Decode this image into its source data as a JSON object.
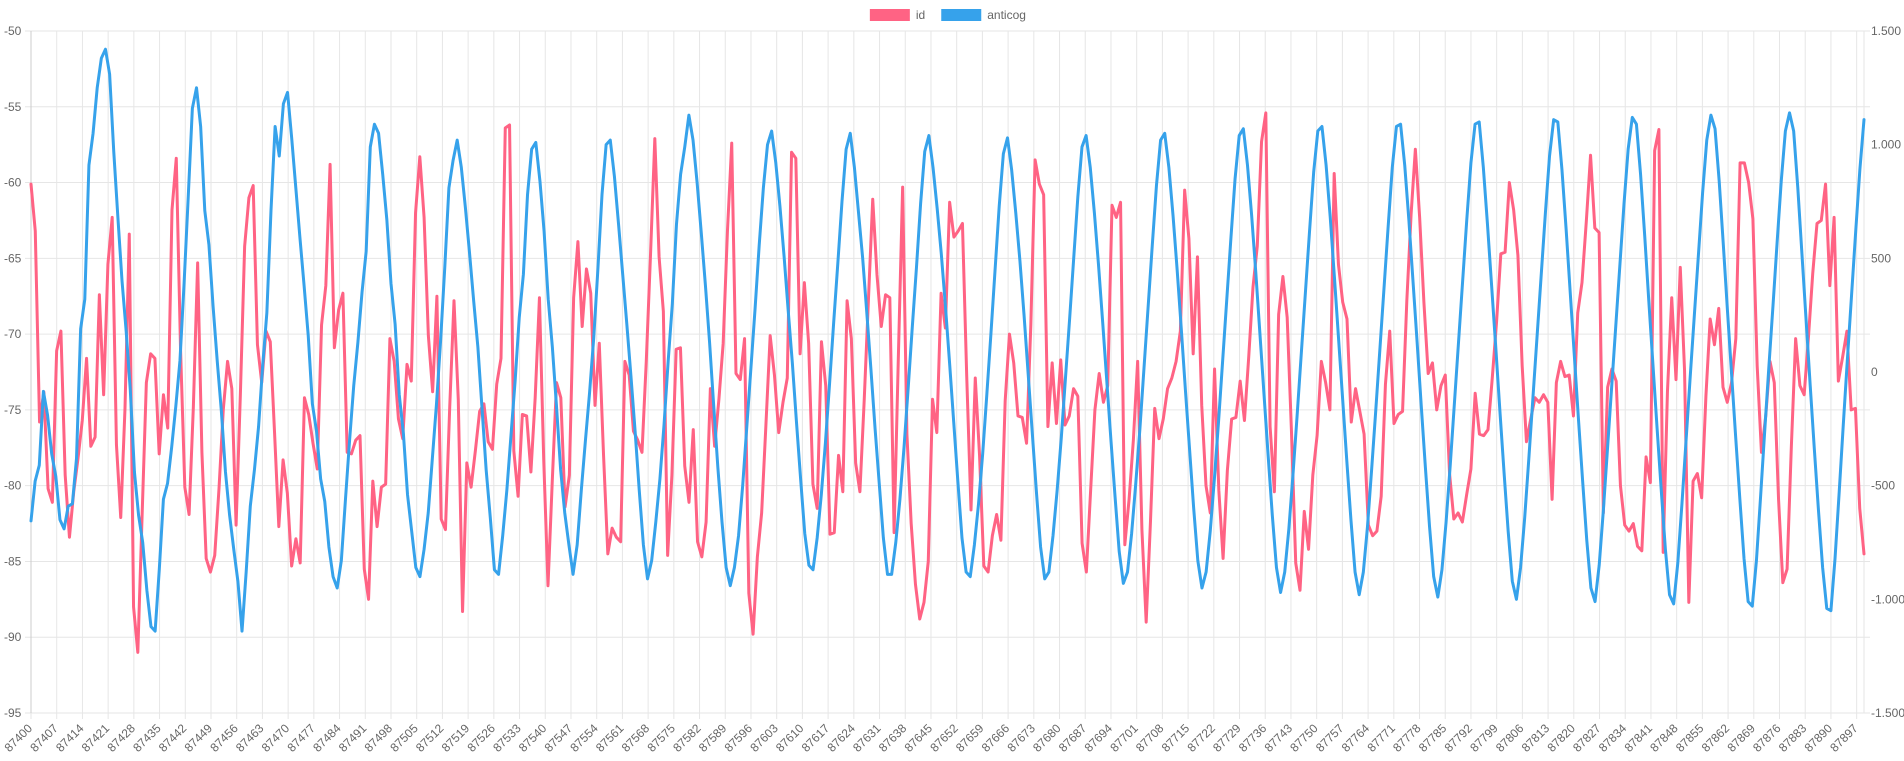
{
  "chart_data": {
    "type": "line",
    "x": {
      "start": 87400,
      "end": 87899,
      "label_start": 87400,
      "label_step": 7,
      "label_end": 87897
    },
    "legend": {
      "placement": "top-center",
      "items": [
        {
          "name": "id",
          "color": "#ff6384"
        },
        {
          "name": "anticog",
          "color": "#36a2eb"
        }
      ]
    },
    "y_left": {
      "min": -95,
      "max": -50,
      "ticks": [
        -50,
        -55,
        -60,
        -65,
        -70,
        -75,
        -80,
        -85,
        -90,
        -95
      ],
      "tick_labels": [
        "-50",
        "-55",
        "-60",
        "-65",
        "-70",
        "-75",
        "-80",
        "-85",
        "-90",
        "-95"
      ]
    },
    "y_right": {
      "min": -1500,
      "max": 1500,
      "ticks": [
        1500,
        1000,
        500,
        0,
        -500,
        -1000,
        -1500
      ],
      "tick_labels": [
        "1.500",
        "1.000",
        "500",
        "0",
        "-500",
        "-1.000",
        "-1.500"
      ]
    },
    "grid": true,
    "series": [
      {
        "name": "id",
        "axis": "left",
        "color": "#ff6384",
        "values": [
          -60.1,
          -63.2,
          -75.8,
          -73.8,
          -80.2,
          -81.1,
          -71.1,
          -69.8,
          -79.3,
          -83.4,
          -80.4,
          -78.2,
          -75.7,
          -71.6,
          -77.4,
          -76.8,
          -67.4,
          -74.0,
          -65.4,
          -62.3,
          -77.3,
          -82.1,
          -74.9,
          -63.4,
          -88.0,
          -91.0,
          -82.0,
          -73.2,
          -71.3,
          -71.6,
          -77.9,
          -74.0,
          -76.2,
          -61.8,
          -58.4,
          -71.0,
          -80.1,
          -81.9,
          -74.8,
          -65.3,
          -77.8,
          -84.8,
          -85.7,
          -84.6,
          -80.2,
          -75.0,
          -71.8,
          -73.6,
          -82.6,
          -74.0,
          -64.2,
          -61.0,
          -60.2,
          -70.7,
          -73.2,
          -69.8,
          -70.5,
          -76.5,
          -82.7,
          -78.3,
          -80.5,
          -85.3,
          -83.5,
          -85.1,
          -74.2,
          -75.3,
          -77.2,
          -78.9,
          -69.4,
          -66.8,
          -58.8,
          -70.9,
          -68.4,
          -67.3,
          -77.8,
          -77.9,
          -77.0,
          -76.7,
          -85.5,
          -87.5,
          -79.7,
          -82.7,
          -80.1,
          -79.9,
          -70.3,
          -71.8,
          -75.6,
          -76.9,
          -72.0,
          -73.1,
          -62.0,
          -58.3,
          -62.3,
          -70.1,
          -73.8,
          -67.5,
          -82.2,
          -82.9,
          -74.8,
          -67.8,
          -74.3,
          -88.3,
          -78.5,
          -80.1,
          -77.7,
          -75.1,
          -74.6,
          -77.1,
          -77.6,
          -73.3,
          -71.6,
          -56.4,
          -56.2,
          -77.7,
          -80.7,
          -75.3,
          -75.4,
          -79.1,
          -74.2,
          -67.6,
          -78.3,
          -86.6,
          -79.7,
          -73.2,
          -74.2,
          -81.4,
          -79.3,
          -67.6,
          -63.9,
          -69.5,
          -65.7,
          -67.3,
          -74.7,
          -70.6,
          -78.0,
          -84.5,
          -82.8,
          -83.4,
          -83.7,
          -71.8,
          -72.7,
          -76.4,
          -77.0,
          -77.8,
          -71.8,
          -64.7,
          -57.1,
          -64.9,
          -68.5,
          -84.6,
          -79.3,
          -71.0,
          -70.9,
          -78.7,
          -81.1,
          -76.3,
          -83.7,
          -84.7,
          -82.4,
          -73.6,
          -77.4,
          -74.3,
          -70.6,
          -63.2,
          -57.4,
          -72.6,
          -73.0,
          -70.3,
          -87.1,
          -89.8,
          -84.7,
          -81.8,
          -76.0,
          -70.1,
          -72.7,
          -76.5,
          -74.5,
          -72.9,
          -58.0,
          -58.4,
          -71.3,
          -66.6,
          -70.6,
          -79.9,
          -81.5,
          -70.5,
          -73.4,
          -83.2,
          -83.1,
          -78.0,
          -80.4,
          -67.8,
          -70.3,
          -78.5,
          -80.4,
          -74.4,
          -67.7,
          -61.1,
          -66.1,
          -69.5,
          -67.4,
          -67.6,
          -83.1,
          -71.5,
          -60.3,
          -76.6,
          -82.5,
          -86.5,
          -88.8,
          -87.7,
          -85.0,
          -74.3,
          -76.5,
          -67.3,
          -69.6,
          -61.3,
          -63.6,
          -63.2,
          -62.7,
          -72.8,
          -81.6,
          -72.9,
          -78.0,
          -85.3,
          -85.7,
          -83.3,
          -81.9,
          -83.6,
          -74.4,
          -70.0,
          -71.9,
          -75.4,
          -75.5,
          -77.2,
          -69.4,
          -58.5,
          -60.1,
          -60.8,
          -76.1,
          -71.9,
          -75.9,
          -71.7,
          -76.0,
          -75.4,
          -73.6,
          -74.1,
          -83.8,
          -85.7,
          -80.3,
          -75.0,
          -72.6,
          -74.5,
          -73.4,
          -61.5,
          -62.3,
          -61.3,
          -83.9,
          -80.9,
          -77.0,
          -71.8,
          -82.9,
          -89.0,
          -82.4,
          -74.9,
          -76.9,
          -75.6,
          -73.6,
          -72.9,
          -71.8,
          -69.8,
          -60.5,
          -63.7,
          -71.3,
          -64.9,
          -74.7,
          -80.0,
          -81.8,
          -72.3,
          -80.3,
          -84.8,
          -79.0,
          -75.6,
          -75.5,
          -73.1,
          -75.7,
          -71.5,
          -66.9,
          -64.2,
          -57.3,
          -55.4,
          -76.1,
          -80.4,
          -68.7,
          -66.2,
          -68.9,
          -76.4,
          -85.1,
          -86.9,
          -81.7,
          -84.2,
          -79.3,
          -76.7,
          -71.8,
          -73.2,
          -75.0,
          -59.4,
          -65.4,
          -67.9,
          -69.0,
          -75.8,
          -73.6,
          -75.1,
          -76.6,
          -82.6,
          -83.3,
          -83.0,
          -80.7,
          -73.3,
          -69.8,
          -75.9,
          -75.3,
          -75.1,
          -67.8,
          -62.1,
          -57.8,
          -62.3,
          -67.9,
          -72.6,
          -71.9,
          -75.0,
          -73.4,
          -72.7,
          -79.2,
          -82.2,
          -81.8,
          -82.4,
          -80.6,
          -78.9,
          -73.9,
          -76.6,
          -76.7,
          -76.3,
          -72.9,
          -69.2,
          -64.7,
          -64.6,
          -60.0,
          -61.8,
          -64.8,
          -72.1,
          -77.1,
          -75.6,
          -74.2,
          -74.5,
          -74.0,
          -74.5,
          -80.9,
          -73.2,
          -71.8,
          -72.8,
          -72.7,
          -75.4,
          -68.6,
          -66.6,
          -62.6,
          -58.2,
          -63.0,
          -63.3,
          -81.8,
          -73.5,
          -72.3,
          -73.1,
          -80.0,
          -82.6,
          -83.0,
          -82.5,
          -84.0,
          -84.3,
          -78.1,
          -79.8,
          -57.9,
          -56.5,
          -84.4,
          -73.8,
          -67.6,
          -73.0,
          -65.6,
          -72.4,
          -87.7,
          -79.7,
          -79.2,
          -80.8,
          -74.1,
          -69.0,
          -70.7,
          -68.3,
          -73.5,
          -74.5,
          -73.2,
          -70.3,
          -58.7,
          -58.7,
          -60.0,
          -62.4,
          -72.1,
          -77.8,
          -75.4,
          -71.8,
          -73.2,
          -80.9,
          -86.4,
          -85.5,
          -77.4,
          -70.3,
          -73.4,
          -74.0,
          -70.2,
          -66.0,
          -62.7,
          -62.5,
          -60.1,
          -66.8,
          -62.3,
          -73.1,
          -71.5,
          -69.8,
          -75.0,
          -74.9,
          -81.5,
          -84.5
        ]
      },
      {
        "name": "anticog",
        "axis": "right",
        "color": "#36a2eb",
        "values": [
          -655,
          -480,
          -410,
          -85,
          -190,
          -360,
          -460,
          -650,
          -690,
          -590,
          -580,
          -380,
          190,
          320,
          910,
          1050,
          1250,
          1380,
          1420,
          1310,
          970,
          680,
          400,
          180,
          -80,
          -440,
          -630,
          -750,
          -960,
          -1120,
          -1140,
          -870,
          -560,
          -490,
          -330,
          -150,
          50,
          390,
          770,
          1160,
          1250,
          1080,
          710,
          560,
          290,
          50,
          -170,
          -440,
          -630,
          -780,
          -920,
          -1140,
          -880,
          -590,
          -430,
          -240,
          30,
          260,
          710,
          1080,
          950,
          1180,
          1230,
          1030,
          810,
          590,
          380,
          160,
          -140,
          -260,
          -470,
          -570,
          -770,
          -900,
          -950,
          -830,
          -560,
          -300,
          -60,
          130,
          350,
          530,
          990,
          1090,
          1050,
          870,
          670,
          390,
          210,
          -100,
          -270,
          -540,
          -700,
          -860,
          -900,
          -780,
          -620,
          -380,
          -140,
          140,
          460,
          810,
          930,
          1020,
          900,
          720,
          520,
          310,
          110,
          -160,
          -430,
          -640,
          -870,
          -890,
          -720,
          -520,
          -280,
          -40,
          240,
          430,
          780,
          980,
          1010,
          840,
          620,
          320,
          110,
          -150,
          -430,
          -620,
          -760,
          -890,
          -760,
          -520,
          -300,
          -90,
          150,
          450,
          780,
          1000,
          1020,
          860,
          650,
          430,
          210,
          -20,
          -260,
          -520,
          -760,
          -910,
          -830,
          -660,
          -470,
          -230,
          50,
          300,
          650,
          870,
          990,
          1130,
          1020,
          830,
          610,
          380,
          130,
          -150,
          -420,
          -660,
          -860,
          -940,
          -860,
          -720,
          -500,
          -240,
          20,
          280,
          560,
          810,
          1000,
          1060,
          920,
          730,
          510,
          270,
          40,
          -220,
          -470,
          -710,
          -850,
          -870,
          -730,
          -540,
          -310,
          -50,
          220,
          480,
          750,
          980,
          1050,
          900,
          700,
          500,
          260,
          10,
          -250,
          -490,
          -730,
          -890,
          -890,
          -750,
          -560,
          -330,
          -70,
          200,
          460,
          740,
          970,
          1040,
          900,
          720,
          520,
          290,
          40,
          -220,
          -480,
          -730,
          -880,
          -900,
          -760,
          -580,
          -360,
          -100,
          170,
          450,
          730,
          960,
          1030,
          890,
          700,
          490,
          250,
          -10,
          -270,
          -530,
          -770,
          -910,
          -880,
          -720,
          -520,
          -290,
          -30,
          230,
          500,
          770,
          990,
          1040,
          900,
          700,
          470,
          220,
          -40,
          -300,
          -550,
          -790,
          -930,
          -880,
          -710,
          -490,
          -250,
          20,
          290,
          560,
          820,
          1020,
          1050,
          900,
          690,
          450,
          190,
          -80,
          -340,
          -600,
          -830,
          -950,
          -880,
          -700,
          -470,
          -220,
          50,
          320,
          590,
          850,
          1040,
          1070,
          910,
          690,
          440,
          170,
          -100,
          -370,
          -630,
          -860,
          -970,
          -880,
          -690,
          -450,
          -190,
          80,
          350,
          620,
          880,
          1060,
          1080,
          910,
          680,
          420,
          150,
          -120,
          -390,
          -650,
          -880,
          -980,
          -880,
          -680,
          -430,
          -170,
          100,
          370,
          640,
          900,
          1080,
          1090,
          910,
          670,
          400,
          130,
          -150,
          -420,
          -680,
          -900,
          -990,
          -870,
          -660,
          -410,
          -140,
          130,
          400,
          670,
          920,
          1090,
          1100,
          900,
          650,
          380,
          110,
          -170,
          -440,
          -700,
          -920,
          -1000,
          -860,
          -640,
          -380,
          -110,
          160,
          430,
          700,
          950,
          1110,
          1100,
          890,
          630,
          350,
          70,
          -210,
          -480,
          -740,
          -950,
          -1010,
          -850,
          -610,
          -340,
          -70,
          200,
          470,
          740,
          980,
          1120,
          1090,
          870,
          600,
          310,
          30,
          -250,
          -520,
          -780,
          -980,
          -1020,
          -840,
          -580,
          -300,
          -20,
          250,
          520,
          790,
          1020,
          1130,
          1070,
          840,
          560,
          270,
          -10,
          -290,
          -560,
          -820,
          -1010,
          -1030,
          -830,
          -550,
          -260,
          20,
          290,
          570,
          840,
          1060,
          1140,
          1060,
          810,
          520,
          230,
          -60,
          -340,
          -610,
          -860,
          -1040,
          -1050,
          -820,
          -530,
          -230,
          60,
          340,
          620,
          890,
          1110
        ]
      }
    ]
  }
}
